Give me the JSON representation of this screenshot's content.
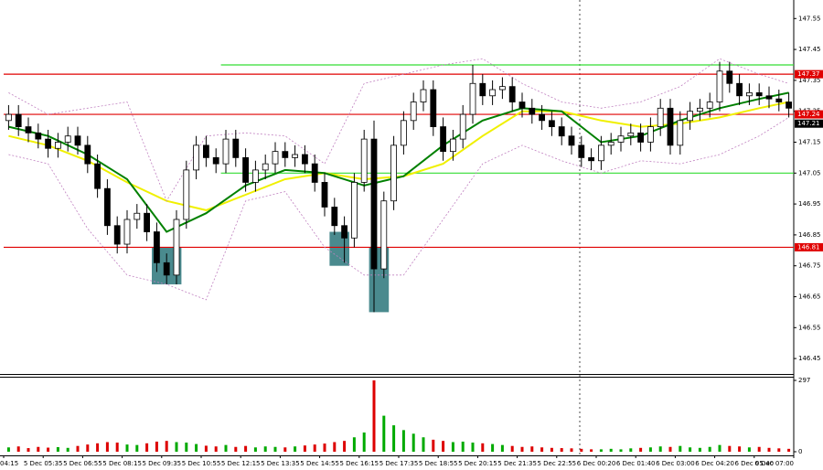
{
  "chart_data": {
    "type": "candlestick",
    "open": [
      147.22,
      147.24,
      147.2,
      147.18,
      147.16,
      147.13,
      147.15,
      147.17,
      147.14,
      147.08,
      147.0,
      146.88,
      146.82,
      146.9,
      146.92,
      146.86,
      146.76,
      146.72,
      146.9,
      147.06,
      147.14,
      147.1,
      147.08,
      147.16,
      147.1,
      147.02,
      147.06,
      147.08,
      147.12,
      147.1,
      147.11,
      147.08,
      147.02,
      146.94,
      146.88,
      146.84,
      147.02,
      147.16,
      146.74,
      146.96,
      147.14,
      147.22,
      147.28,
      147.32,
      147.2,
      147.12,
      147.16,
      147.24,
      147.34,
      147.3,
      147.32,
      147.33,
      147.28,
      147.26,
      147.24,
      147.22,
      147.2,
      147.17,
      147.14,
      147.1,
      147.09,
      147.14,
      147.15,
      147.17,
      147.18,
      147.15,
      147.2,
      147.26,
      147.14,
      147.22,
      147.25,
      147.26,
      147.28,
      147.38,
      147.34,
      147.3,
      147.31,
      147.3,
      147.29,
      147.28
    ],
    "high": [
      147.27,
      147.27,
      147.23,
      147.21,
      147.19,
      147.18,
      147.2,
      147.2,
      147.17,
      147.11,
      147.03,
      146.91,
      146.93,
      146.95,
      146.95,
      146.89,
      146.79,
      146.93,
      147.09,
      147.17,
      147.17,
      147.13,
      147.19,
      147.19,
      147.13,
      147.09,
      147.11,
      147.15,
      147.15,
      147.14,
      147.14,
      147.11,
      147.05,
      146.97,
      146.91,
      147.05,
      147.19,
      147.22,
      146.99,
      147.17,
      147.25,
      147.31,
      147.35,
      147.35,
      147.23,
      147.19,
      147.27,
      147.4,
      147.37,
      147.35,
      147.36,
      147.36,
      147.31,
      147.29,
      147.27,
      147.25,
      147.23,
      147.2,
      147.17,
      147.13,
      147.17,
      147.18,
      147.2,
      147.21,
      147.21,
      147.23,
      147.29,
      147.29,
      147.25,
      147.28,
      147.29,
      147.31,
      147.41,
      147.41,
      147.37,
      147.34,
      147.34,
      147.33,
      147.32,
      147.31
    ],
    "low": [
      147.19,
      147.17,
      147.15,
      147.13,
      147.1,
      147.1,
      147.12,
      147.11,
      147.05,
      146.97,
      146.85,
      146.79,
      146.79,
      146.87,
      146.83,
      146.73,
      146.69,
      146.69,
      146.87,
      147.03,
      147.07,
      147.05,
      147.05,
      147.07,
      146.99,
      146.99,
      147.03,
      147.05,
      147.07,
      147.07,
      147.05,
      146.99,
      146.91,
      146.85,
      146.76,
      146.81,
      146.99,
      146.6,
      146.71,
      146.93,
      147.11,
      147.19,
      147.25,
      147.17,
      147.09,
      147.09,
      147.13,
      147.21,
      147.27,
      147.27,
      147.29,
      147.25,
      147.23,
      147.21,
      147.19,
      147.17,
      147.14,
      147.11,
      147.07,
      147.06,
      147.06,
      147.11,
      147.12,
      147.14,
      147.12,
      147.12,
      147.17,
      147.11,
      147.11,
      147.19,
      147.22,
      147.23,
      147.25,
      147.31,
      147.27,
      147.27,
      147.27,
      147.26,
      147.25,
      147.23
    ],
    "close": [
      147.24,
      147.2,
      147.18,
      147.16,
      147.13,
      147.15,
      147.17,
      147.14,
      147.08,
      147.0,
      146.88,
      146.82,
      146.9,
      146.92,
      146.86,
      146.76,
      146.72,
      146.9,
      147.06,
      147.14,
      147.1,
      147.08,
      147.16,
      147.1,
      147.02,
      147.06,
      147.08,
      147.12,
      147.1,
      147.11,
      147.08,
      147.02,
      146.94,
      146.88,
      146.84,
      147.02,
      147.16,
      146.74,
      146.96,
      147.14,
      147.22,
      147.28,
      147.32,
      147.2,
      147.12,
      147.16,
      147.24,
      147.34,
      147.3,
      147.32,
      147.33,
      147.28,
      147.26,
      147.24,
      147.22,
      147.2,
      147.17,
      147.14,
      147.1,
      147.09,
      147.14,
      147.15,
      147.17,
      147.18,
      147.15,
      147.2,
      147.26,
      147.14,
      147.22,
      147.25,
      147.26,
      147.28,
      147.38,
      147.34,
      147.3,
      147.31,
      147.3,
      147.29,
      147.28,
      147.26
    ],
    "up_color": "#ffffff",
    "down_color": "#000000",
    "x_labels": [
      "04:15",
      "5 Dec 05:35",
      "5 Dec 06:55",
      "5 Dec 08:15",
      "5 Dec 09:35",
      "5 Dec 10:55",
      "5 Dec 12:15",
      "5 Dec 13:35",
      "5 Dec 14:55",
      "5 Dec 16:15",
      "5 Dec 17:35",
      "5 Dec 18:55",
      "5 Dec 20:15",
      "5 Dec 21:35",
      "5 Dec 22:55",
      "6 Dec 00:20",
      "6 Dec 01:40",
      "6 Dec 03:00",
      "6 Dec 04:20",
      "6 Dec 05:40",
      "6 Dec 07:00"
    ],
    "ylim": [
      146.4,
      147.61
    ],
    "yticks": [
      147.55,
      147.45,
      147.35,
      147.25,
      147.15,
      147.05,
      146.95,
      146.85,
      146.75,
      146.65,
      146.55,
      146.45
    ],
    "ma_x": [
      0,
      4,
      8,
      12,
      16,
      20,
      24,
      28,
      32,
      36,
      40,
      44,
      48,
      52,
      56,
      60,
      64,
      68,
      72,
      76,
      79
    ],
    "series": [
      {
        "color": "#f0f000",
        "values": [
          147.17,
          147.14,
          147.09,
          147.02,
          146.96,
          146.93,
          146.98,
          147.03,
          147.05,
          147.03,
          147.04,
          147.08,
          147.17,
          147.25,
          147.25,
          147.22,
          147.2,
          147.21,
          147.23,
          147.26,
          147.28
        ]
      },
      {
        "color": "#008000",
        "values": [
          147.2,
          147.17,
          147.11,
          147.03,
          146.86,
          146.92,
          147.01,
          147.06,
          147.05,
          147.01,
          147.04,
          147.14,
          147.22,
          147.26,
          147.25,
          147.15,
          147.17,
          147.22,
          147.26,
          147.29,
          147.31
        ]
      },
      {
        "color": "#c080c0",
        "values": [
          147.31,
          147.24,
          147.26,
          147.28,
          146.96,
          147.17,
          147.18,
          147.17,
          147.08,
          147.34,
          147.37,
          147.4,
          147.42,
          147.34,
          147.28,
          147.26,
          147.28,
          147.33,
          147.42,
          147.37,
          147.34
        ]
      },
      {
        "color": "#c080c0",
        "values": [
          147.11,
          147.08,
          146.87,
          146.72,
          146.69,
          146.64,
          146.96,
          146.99,
          146.81,
          146.72,
          146.72,
          146.9,
          147.08,
          147.14,
          147.09,
          147.05,
          147.09,
          147.08,
          147.11,
          147.17,
          147.23
        ]
      }
    ],
    "levels": [
      {
        "value": 147.37,
        "color": "#e00000",
        "from": 0
      },
      {
        "value": 147.24,
        "color": "#e00000",
        "from": 0
      },
      {
        "value": 146.81,
        "color": "#e00000",
        "from": 0
      },
      {
        "value": 147.4,
        "color": "#33dd33",
        "from": 22
      },
      {
        "value": 147.05,
        "color": "#33dd33",
        "from": 22
      }
    ],
    "current_price": 147.21,
    "zones": [
      {
        "start": 15,
        "end": 18,
        "low": 146.69,
        "high": 146.81
      },
      {
        "start": 33,
        "end": 35,
        "low": 146.75,
        "high": 146.86
      },
      {
        "start": 37,
        "end": 39,
        "low": 146.6,
        "high": 146.81
      }
    ],
    "zone_color": "#4a8a8e",
    "volume": {
      "values": [
        18,
        22,
        15,
        20,
        17,
        19,
        16,
        24,
        30,
        35,
        40,
        38,
        30,
        28,
        35,
        42,
        45,
        40,
        38,
        32,
        25,
        22,
        28,
        20,
        24,
        18,
        22,
        20,
        18,
        22,
        26,
        30,
        34,
        40,
        45,
        60,
        80,
        297,
        150,
        110,
        90,
        75,
        60,
        50,
        45,
        40,
        42,
        38,
        35,
        32,
        28,
        24,
        20,
        22,
        18,
        16,
        15,
        14,
        12,
        10,
        10,
        12,
        10,
        14,
        16,
        18,
        22,
        20,
        24,
        18,
        16,
        20,
        28,
        24,
        22,
        18,
        20,
        16,
        14,
        12
      ],
      "up_color": "#00aa00",
      "down_color": "#dd0000",
      "ylim": [
        0,
        297
      ],
      "yticks": [
        0,
        297
      ]
    }
  }
}
